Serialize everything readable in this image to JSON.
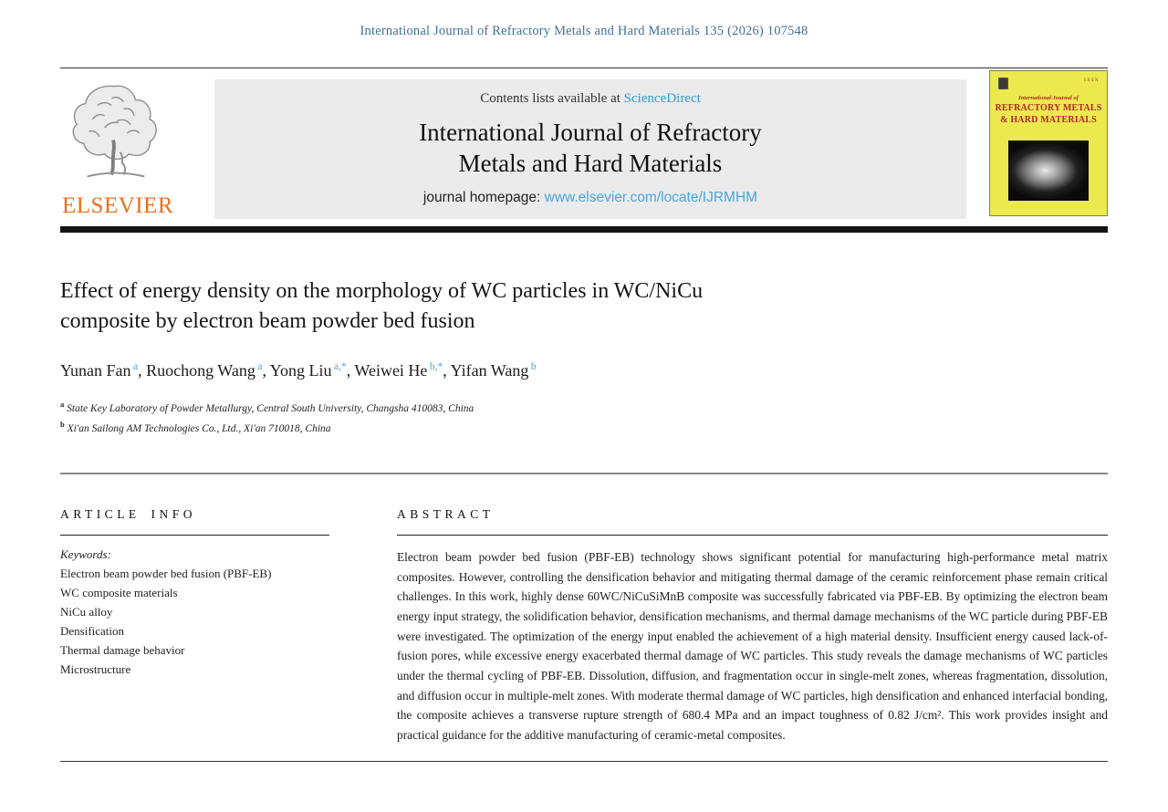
{
  "page": {
    "citation": "International Journal of Refractory Metals and Hard Materials 135 (2026) 107548"
  },
  "header": {
    "publisher": "ELSEVIER",
    "contents_prefix": "Contents lists available at ",
    "contents_link": "ScienceDirect",
    "journal_title_line1": "International Journal of Refractory",
    "journal_title_line2": "Metals and Hard Materials",
    "homepage_prefix": "journal homepage: ",
    "homepage_link": "www.elsevier.com/locate/IJRMHM",
    "cover": {
      "issn": "ISSN",
      "line1": "International Journal of",
      "line2": "REFRACTORY METALS",
      "line3": "& HARD MATERIALS"
    }
  },
  "article": {
    "title_lines": [
      "Effect of energy density on the morphology of WC particles in WC/NiCu",
      "composite by electron beam powder bed fusion"
    ],
    "authors": [
      {
        "name": "Yunan Fan",
        "sup": "a"
      },
      {
        "name": "Ruochong Wang",
        "sup": "a"
      },
      {
        "name": "Yong Liu",
        "sup": "a,*"
      },
      {
        "name": "Weiwei He",
        "sup": "b,*"
      },
      {
        "name": "Yifan Wang",
        "sup": "b"
      }
    ],
    "affiliations": [
      {
        "sup": "a",
        "text": "State Key Laboratory of Powder Metallurgy, Central South University, Changsha 410083, China"
      },
      {
        "sup": "b",
        "text": "Xi'an Sailong AM Technologies Co., Ltd., Xi'an 710018, China"
      }
    ]
  },
  "article_info": {
    "heading": "ARTICLE INFO",
    "keywords_label": "Keywords:",
    "keywords": [
      "Electron beam powder bed fusion (PBF-EB)",
      "WC composite materials",
      "NiCu alloy",
      "Densification",
      "Thermal damage behavior",
      "Microstructure"
    ]
  },
  "abstract": {
    "heading": "ABSTRACT",
    "text": "Electron beam powder bed fusion (PBF-EB) technology shows significant potential for manufacturing high-performance metal matrix composites. However, controlling the densification behavior and mitigating thermal damage of the ceramic reinforcement phase remain critical challenges. In this work, highly dense 60WC/NiCuSiMnB composite was successfully fabricated via PBF-EB. By optimizing the electron beam energy input strategy, the solidification behavior, densification mechanisms, and thermal damage mechanisms of the WC particle during PBF-EB were investigated. The optimization of the energy input enabled the achievement of a high material density. Insufficient energy caused lack-of-fusion pores, while excessive energy exacerbated thermal damage of WC particles. This study reveals the damage mechanisms of WC particles under the thermal cycling of PBF-EB. Dissolution, diffusion, and fragmentation occur in single-melt zones, whereas fragmentation, dissolution, and diffusion occur in multiple-melt zones. With moderate thermal damage of WC particles, high densification and enhanced interfacial bonding, the composite achieves a transverse rupture strength of 680.4 MPa and an impact toughness of 0.82 J/cm². This work provides insight and practical guidance for the additive manufacturing of ceramic-metal composites."
  },
  "colors": {
    "citation_blue": "#456f98",
    "sciencedirect_link_blue": "#2e9bd5",
    "homepage_link_blue": "#4ba5de",
    "author_superscript_blue": "#4aa3dc",
    "elsevier_orange": "#e9701a",
    "banner_gray": "#ebebeb",
    "cover_yellow": "#ebe94e",
    "cover_red": "#b3262a",
    "divider_black": "#141414"
  }
}
